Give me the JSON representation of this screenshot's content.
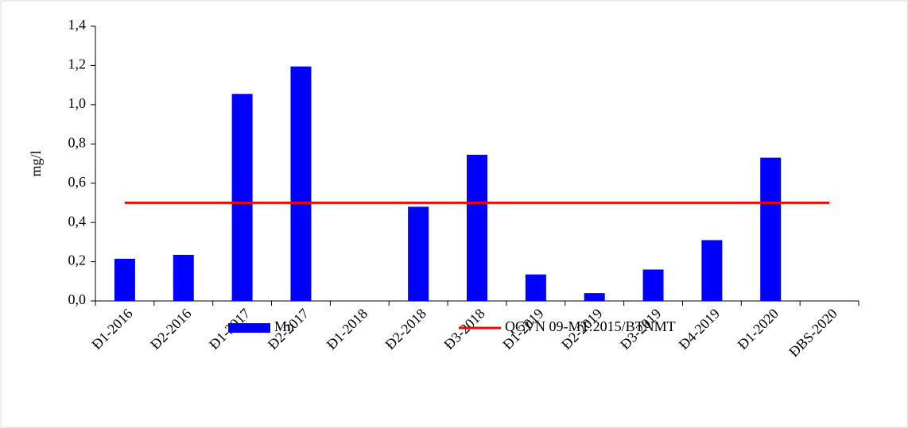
{
  "chart_data": {
    "type": "bar",
    "y_label": "mg/l",
    "categories": [
      "Đ1-2016",
      "Đ2-2016",
      "Đ1-2017",
      "Đ2-2017",
      "Đ1-2018",
      "Đ2-2018",
      "Đ3-2018",
      "Đ1-2019",
      "Đ2-2019",
      "Đ3-2019",
      "Đ4-2019",
      "Đ1-2020",
      "ĐBS-2020"
    ],
    "series": [
      {
        "name": "Mn",
        "type": "bar",
        "color": "#0000ff",
        "values": [
          0.215,
          0.235,
          1.055,
          1.195,
          null,
          0.48,
          0.745,
          0.135,
          0.04,
          0.16,
          0.31,
          0.73,
          null
        ]
      },
      {
        "name": "QCVN 09-MT:2015/BTNMT",
        "type": "line",
        "color": "#ff0000",
        "values": [
          0.5,
          0.5,
          0.5,
          0.5,
          0.5,
          0.5,
          0.5,
          0.5,
          0.5,
          0.5,
          0.5,
          0.5,
          0.5
        ]
      }
    ],
    "ylim": [
      0,
      1.4
    ],
    "yticks": [
      {
        "value": 0,
        "label": "0,0"
      },
      {
        "value": 0.2,
        "label": "0,2"
      },
      {
        "value": 0.4,
        "label": "0,4"
      },
      {
        "value": 0.6,
        "label": "0,6"
      },
      {
        "value": 0.8,
        "label": "0,8"
      },
      {
        "value": 1.0,
        "label": "1,0"
      },
      {
        "value": 1.2,
        "label": "1,2"
      },
      {
        "value": 1.4,
        "label": "1,4"
      }
    ],
    "grid": false,
    "legend": "bottom"
  }
}
